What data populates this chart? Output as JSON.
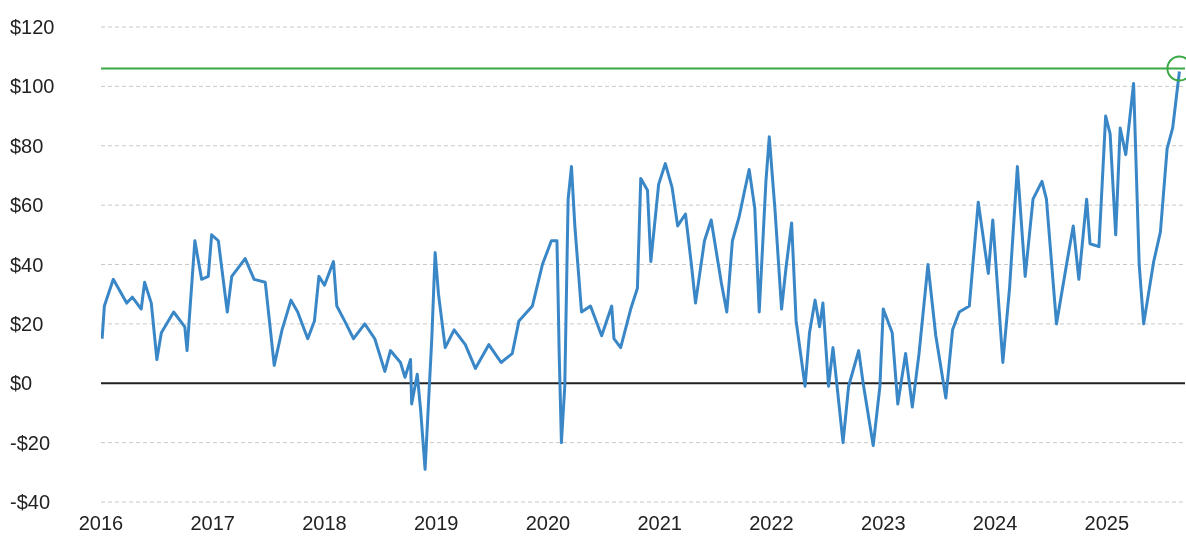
{
  "chart_data": {
    "type": "line",
    "x": [
      2016.01,
      2016.03,
      2016.11,
      2016.23,
      2016.28,
      2016.36,
      2016.39,
      2016.45,
      2016.5,
      2016.54,
      2016.65,
      2016.75,
      2016.77,
      2016.8,
      2016.84,
      2016.9,
      2016.96,
      2016.99,
      2017.05,
      2017.13,
      2017.17,
      2017.29,
      2017.37,
      2017.47,
      2017.55,
      2017.62,
      2017.7,
      2017.76,
      2017.85,
      2017.91,
      2017.95,
      2018.0,
      2018.08,
      2018.11,
      2018.18,
      2018.26,
      2018.36,
      2018.45,
      2018.54,
      2018.59,
      2018.68,
      2018.72,
      2018.77,
      2018.78,
      2018.83,
      2018.86,
      2018.9,
      2018.93,
      2018.96,
      2018.99,
      2019.02,
      2019.08,
      2019.16,
      2019.26,
      2019.35,
      2019.47,
      2019.58,
      2019.68,
      2019.74,
      2019.86,
      2019.95,
      2020.03,
      2020.08,
      2020.09,
      2020.1,
      2020.12,
      2020.15,
      2020.18,
      2020.21,
      2020.24,
      2020.3,
      2020.38,
      2020.48,
      2020.57,
      2020.59,
      2020.65,
      2020.74,
      2020.8,
      2020.83,
      2020.89,
      2020.92,
      2020.99,
      2021.05,
      2021.11,
      2021.16,
      2021.23,
      2021.28,
      2021.32,
      2021.4,
      2021.46,
      2021.55,
      2021.6,
      2021.65,
      2021.71,
      2021.76,
      2021.8,
      2021.85,
      2021.89,
      2021.95,
      2021.98,
      2022.03,
      2022.09,
      2022.13,
      2022.18,
      2022.22,
      2022.3,
      2022.34,
      2022.39,
      2022.43,
      2022.46,
      2022.51,
      2022.55,
      2022.64,
      2022.69,
      2022.78,
      2022.82,
      2022.91,
      2022.97,
      2023.0,
      2023.08,
      2023.13,
      2023.2,
      2023.26,
      2023.32,
      2023.4,
      2023.47,
      2023.56,
      2023.62,
      2023.68,
      2023.77,
      2023.85,
      2023.94,
      2023.98,
      2024.07,
      2024.13,
      2024.2,
      2024.27,
      2024.34,
      2024.42,
      2024.46,
      2024.55,
      2024.64,
      2024.7,
      2024.75,
      2024.82,
      2024.85,
      2024.93,
      2024.99,
      2025.03,
      2025.08,
      2025.12,
      2025.17,
      2025.24,
      2025.29,
      2025.33,
      2025.42,
      2025.48,
      2025.54,
      2025.59,
      2025.65
    ],
    "series": [
      {
        "color": "#3a87c8",
        "values": [
          15,
          26,
          35,
          27,
          29,
          25,
          34,
          27,
          8,
          17,
          24,
          19,
          11,
          27,
          48,
          35,
          36,
          50,
          48,
          24,
          36,
          42,
          35,
          34,
          6,
          18,
          28,
          24,
          15,
          21,
          36,
          33,
          41,
          26,
          21,
          15,
          20,
          15,
          4,
          11,
          7,
          2,
          8,
          -7,
          3,
          -9,
          -29,
          -7,
          15,
          44,
          30,
          12,
          18,
          13,
          5,
          13,
          7,
          10,
          21,
          26,
          40,
          48,
          48,
          30,
          10,
          -20,
          -1,
          62,
          73,
          53,
          24,
          26,
          16,
          26,
          15,
          12,
          25,
          32,
          69,
          65,
          41,
          67,
          74,
          66,
          53,
          57,
          41,
          27,
          48,
          55,
          34,
          24,
          48,
          56,
          65,
          72,
          59,
          24,
          68,
          83,
          59,
          25,
          39,
          54,
          21,
          -1,
          17,
          28,
          19,
          27,
          -1,
          12,
          -20,
          -1,
          11,
          0,
          -21,
          -1,
          25,
          17,
          -7,
          10,
          -8,
          10,
          40,
          16,
          -5,
          18,
          24,
          26,
          61,
          37,
          55,
          7,
          32,
          73,
          36,
          62,
          68,
          62,
          20,
          40,
          53,
          35,
          62,
          47,
          46,
          90,
          84,
          50,
          86,
          77,
          101,
          40,
          20,
          41,
          51,
          79,
          86,
          105
        ]
      }
    ],
    "xlim": [
      2016,
      2025.7
    ],
    "xticks": [
      2016,
      2017,
      2018,
      2019,
      2020,
      2021,
      2022,
      2023,
      2024,
      2025
    ],
    "ylim": [
      -40,
      120
    ],
    "yticks": [
      {
        "value": -40,
        "label": "-$40"
      },
      {
        "value": -20,
        "label": "-$20"
      },
      {
        "value": 0,
        "label": "$0"
      },
      {
        "value": 20,
        "label": "$20"
      },
      {
        "value": 40,
        "label": "$40"
      },
      {
        "value": 60,
        "label": "$60"
      },
      {
        "value": 80,
        "label": "$80"
      },
      {
        "value": 100,
        "label": "$100"
      },
      {
        "value": 120,
        "label": "$120"
      }
    ],
    "grid": "y",
    "ref_lines": [
      {
        "axis": "y",
        "value": 0,
        "color": "#222222"
      },
      {
        "axis": "y",
        "value": 106,
        "color": "#3aa845"
      }
    ]
  }
}
